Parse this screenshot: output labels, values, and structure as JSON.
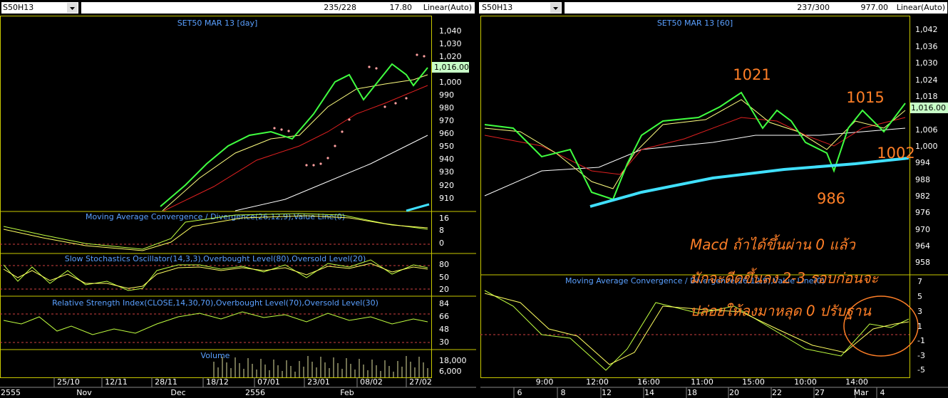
{
  "left": {
    "symbol": "S50H13",
    "count": "235/228",
    "value": "17.80",
    "scale": "Linear(Auto)",
    "title": "SET50 MAR 13   [day]",
    "price_ticks": [
      "1,040",
      "1,030",
      "1,020",
      "1,000",
      "990",
      "980",
      "970",
      "960",
      "950",
      "940",
      "930",
      "920",
      "910"
    ],
    "last": "1,016.00",
    "macd_title": "Moving Average Convergence / Divergence(26,12,9),Value Line(0)",
    "macd_ticks": [
      "16",
      "8",
      "0"
    ],
    "stoch_title": "Slow Stochastics Oscillator(14,3,3),Overbought Level(80),Oversold Level(20)",
    "stoch_ticks": [
      "80",
      "50",
      "20"
    ],
    "rsi_title": "Relative Strength Index(CLOSE,14,30,70),Overbought Level(70),Oversold Level(30)",
    "rsi_ticks": [
      "84",
      "66",
      "48",
      "30"
    ],
    "volume_title": "Volume",
    "volume_ticks": [
      "18,000",
      "6,000"
    ],
    "dates": [
      "25/10",
      "12/11",
      "28/11",
      "18/12",
      "07/01",
      "23/01",
      "08/02",
      "27/02"
    ],
    "periods": [
      "2555",
      "Nov",
      "Dec",
      "2556",
      "Feb"
    ]
  },
  "right": {
    "symbol": "S50H13",
    "count": "237/300",
    "value": "977.00",
    "scale": "Linear(Auto)",
    "title": "SET50 MAR 13   [60]",
    "price_ticks": [
      "1,042",
      "1,036",
      "1,030",
      "1,024",
      "1,018",
      "1,006",
      "1,000",
      "994",
      "988",
      "982",
      "976",
      "970",
      "964",
      "958"
    ],
    "last": "1,016.00",
    "annotations": [
      "1021",
      "1015",
      "1002",
      "986"
    ],
    "note": [
      "Macd ถ้าได้ขึ้นผ่าน 0 แล้ว",
      "มักจะดีดขึ้นลง 2-3 รอบก่อนจะ",
      "ปล่อยให้ลงมาหลุด 0 ปรับฐาน"
    ],
    "macd_title": "Moving Average Convergence / Divergence(26,12,9),Value Line(0)",
    "macd_ticks": [
      "7",
      "5",
      "3",
      "1",
      "-1",
      "-3",
      "-5"
    ],
    "times": [
      "9:00",
      "12:00",
      "16:00",
      "11:00",
      "15:00",
      "10:00",
      "14:00"
    ],
    "days": [
      "6",
      "8",
      "12",
      "14",
      "18",
      "20",
      "22",
      "27",
      "Mar",
      "4"
    ]
  }
}
